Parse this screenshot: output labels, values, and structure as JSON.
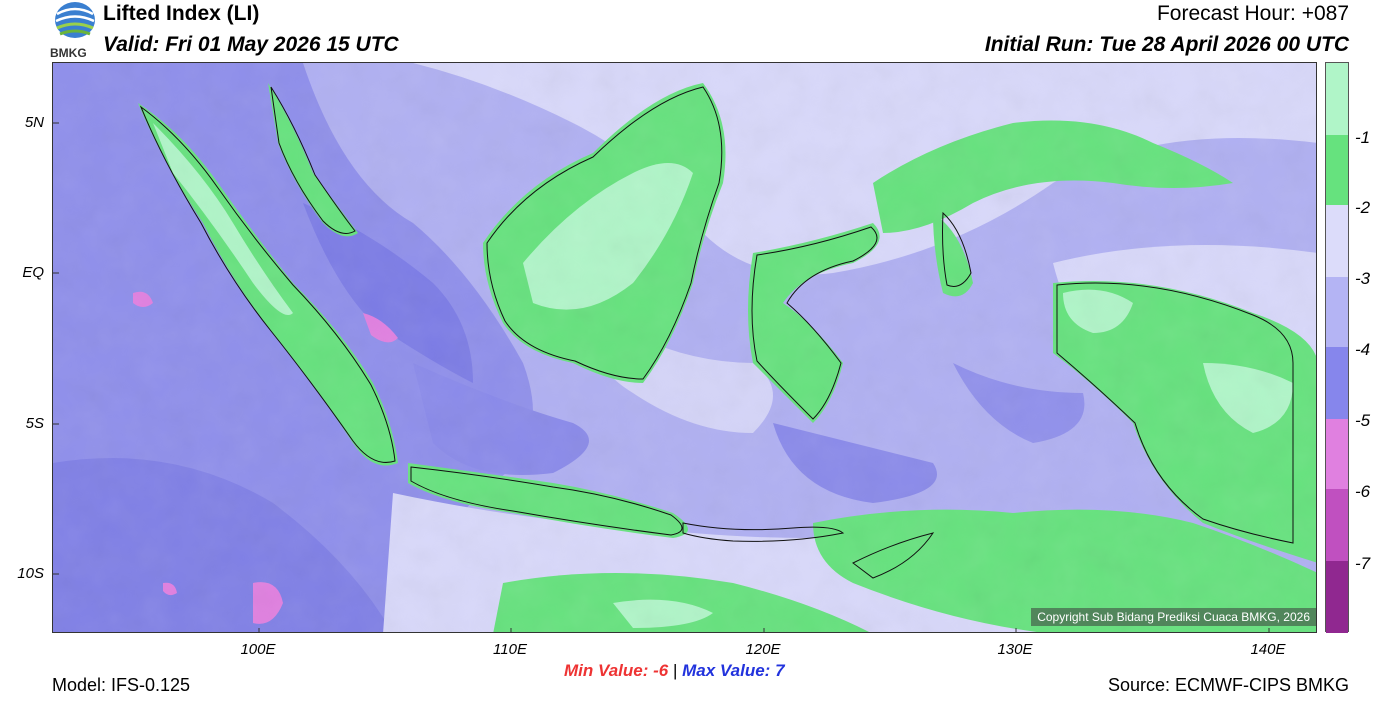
{
  "header": {
    "title": "Lifted Index (LI)",
    "valid": "Valid: Fri 01 May 2026 15 UTC",
    "forecast_hour": "Forecast Hour: +087",
    "initial_run": "Initial Run: Tue 28 April 2026 00 UTC"
  },
  "logo": {
    "text": "BMKG",
    "icon": "bmkg-logo-icon"
  },
  "axes": {
    "y_labels": [
      "5N",
      "EQ",
      "5S",
      "10S"
    ],
    "x_labels": [
      "100E",
      "110E",
      "120E",
      "130E",
      "140E"
    ]
  },
  "colorbar": {
    "labels": [
      "-1",
      "-2",
      "-3",
      "-4",
      "-5",
      "-6",
      "-7"
    ],
    "colors": [
      "#b0f5c8",
      "#66e27e",
      "#dcdcfa",
      "#b4b4f4",
      "#8686ec",
      "#e080e0",
      "#c050c0",
      "#902890"
    ]
  },
  "footer": {
    "min_label": "Min Value:",
    "min_value": "-6",
    "separator": "|",
    "max_label": "Max Value:",
    "max_value": "7",
    "model": "Model: IFS-0.125",
    "source": "Source: ECMWF-CIPS BMKG",
    "copyright": "Copyright Sub Bidang Prediksi Cuaca BMKG, 2026"
  },
  "colors": {
    "deep_blue": "#8484e8",
    "mid_blue": "#b0b0f2",
    "light_lav": "#dcdcfa",
    "green": "#66e27e",
    "light_green": "#b0f5c8",
    "magenta": "#e080e0",
    "min_color": "#ee3333",
    "max_color": "#2233dd"
  }
}
